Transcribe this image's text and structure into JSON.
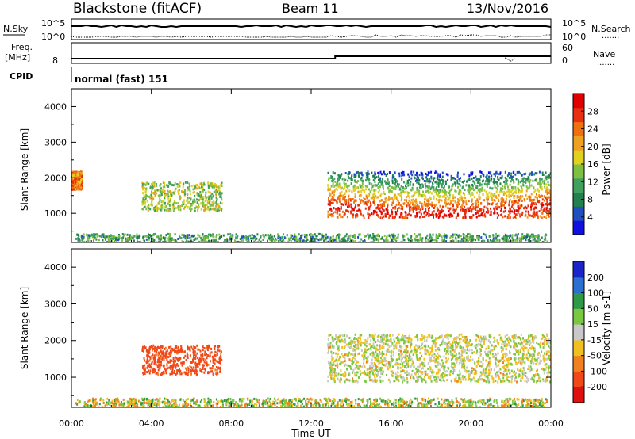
{
  "header": {
    "title": "Blackstone (fitACF)",
    "beam": "Beam 11",
    "date": "13/Nov/2016"
  },
  "status_panels": {
    "nsky_label": "N.Sky",
    "nsearch_label": "N.Search",
    "nsky_ticks": [
      "10^5",
      "10^0"
    ],
    "nsearch_ticks": [
      "10^5",
      "10^0"
    ],
    "freq_label_1": "Freq.",
    "freq_label_2": "[MHz]",
    "freq_tick": "8",
    "nave_label": "Nave",
    "nave_ticks": [
      "60",
      "0"
    ],
    "cpid_label": "CPID",
    "cpid_value": "normal (fast) 151",
    "dots": "......."
  },
  "chart_data": [
    {
      "type": "heatmap",
      "name": "power",
      "ylabel": "Slant Range [km]",
      "xlabel": "Time UT",
      "yticks": [
        1000,
        2000,
        3000,
        4000
      ],
      "ylim": [
        180,
        4500
      ],
      "x_ticks": [
        "00:00",
        "04:00",
        "08:00",
        "12:00",
        "16:00",
        "20:00",
        "00:00"
      ],
      "colorbar": {
        "label": "Power [dB]",
        "ticks": [
          "4",
          "8",
          "12",
          "16",
          "20",
          "24",
          "28"
        ],
        "range": [
          0,
          30
        ],
        "colors": [
          "#1010e0",
          "#2050c0",
          "#208050",
          "#40a060",
          "#80c040",
          "#e0d020",
          "#f0a020",
          "#f07010",
          "#e83010",
          "#e00000"
        ]
      },
      "features": [
        {
          "desc": "near-range ground scatter band",
          "time_h": [
            0.2,
            23.8
          ],
          "range_km": [
            200,
            450
          ],
          "level_db": 10
        },
        {
          "desc": "early echo",
          "time_h": [
            0.0,
            0.5
          ],
          "range_km": [
            1700,
            2200
          ],
          "level_db": 22
        },
        {
          "desc": "04-07 UT patch",
          "time_h": [
            3.5,
            7.5
          ],
          "range_km": [
            1100,
            1900
          ],
          "level_db": 14
        },
        {
          "desc": "afternoon band",
          "time_h": [
            12.8,
            24.0
          ],
          "range_km": [
            900,
            2200
          ],
          "level_db": 26
        }
      ]
    },
    {
      "type": "heatmap",
      "name": "velocity",
      "ylabel": "Slant Range [km]",
      "xlabel": "Time UT",
      "yticks": [
        1000,
        2000,
        3000,
        4000
      ],
      "ylim": [
        180,
        4500
      ],
      "x_ticks": [
        "00:00",
        "04:00",
        "08:00",
        "12:00",
        "16:00",
        "20:00",
        "00:00"
      ],
      "colorbar": {
        "label": "Velocity [m s-1]",
        "ticks": [
          "200",
          "100",
          "50",
          "15",
          "-15",
          "-50",
          "-100",
          "-200"
        ],
        "colors": [
          "#1a24c8",
          "#2d6fd0",
          "#2e9a48",
          "#7ac842",
          "#c8c8c8",
          "#f0c020",
          "#f08020",
          "#f04818",
          "#e01010"
        ]
      },
      "features": [
        {
          "desc": "near-range band",
          "time_h": [
            0.2,
            23.8
          ],
          "range_km": [
            200,
            450
          ],
          "velocity": "mixed"
        },
        {
          "desc": "04-07 UT patch",
          "time_h": [
            3.5,
            7.5
          ],
          "range_km": [
            1100,
            1900
          ],
          "velocity": -100
        },
        {
          "desc": "afternoon band",
          "time_h": [
            12.8,
            24.0
          ],
          "range_km": [
            900,
            2200
          ],
          "velocity": 0
        }
      ]
    }
  ]
}
